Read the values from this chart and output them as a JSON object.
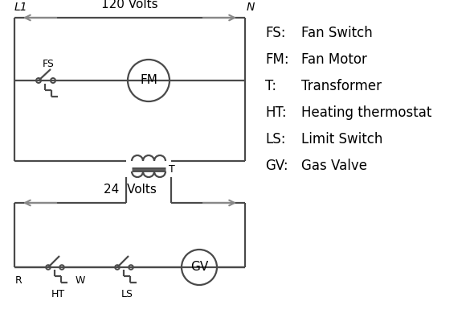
{
  "background_color": "#ffffff",
  "line_color": "#4a4a4a",
  "arrow_color": "#888888",
  "text_color": "#000000",
  "legend": [
    [
      "FS:  ",
      "Fan Switch"
    ],
    [
      "FM:",
      " Fan Motor"
    ],
    [
      "T:   ",
      "  Transformer"
    ],
    [
      "HT: ",
      " Heating thermostat"
    ],
    [
      "LS:  ",
      "Limit Switch"
    ],
    [
      "GV: ",
      " Gas Valve"
    ]
  ],
  "L1_label": "L1",
  "N_label": "N",
  "volts120_label": "120 Volts",
  "volts24_label": "24  Volts",
  "T_label": "T",
  "R_label": "R",
  "W_label": "W",
  "FS_label": "FS",
  "FM_label": "FM",
  "HT_label": "HT",
  "LS_label": "LS",
  "GV_label": "GV"
}
